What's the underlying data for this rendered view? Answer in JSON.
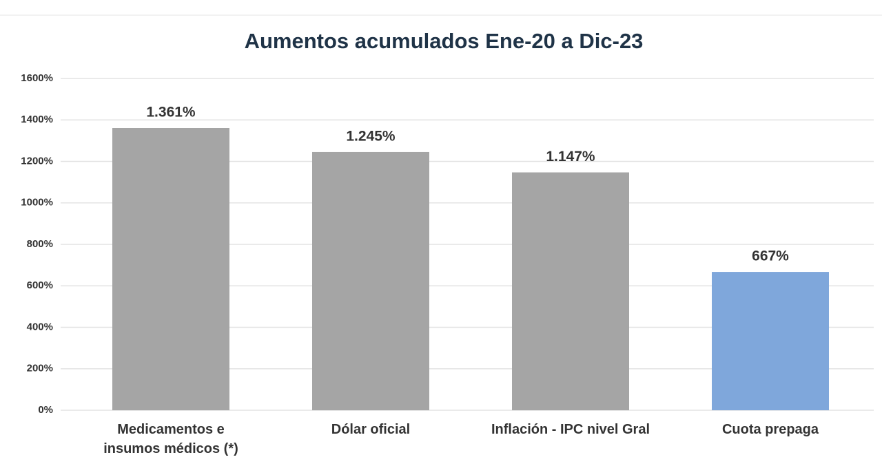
{
  "chart_data": {
    "type": "bar",
    "title": "Aumentos acumulados Ene-20 a Dic-23",
    "categories": [
      "Medicamentos e insumos médicos (*)",
      "Dólar oficial",
      "Inflación - IPC nivel Gral",
      "Cuota prepaga"
    ],
    "values": [
      1361,
      1245,
      1147,
      667
    ],
    "value_labels": [
      "1.361%",
      "1.245%",
      "1.147%",
      "667%"
    ],
    "colors": [
      "#a5a5a5",
      "#a5a5a5",
      "#a5a5a5",
      "#7fa7db"
    ],
    "ylim": [
      0,
      1600
    ],
    "yticks": [
      {
        "value": 0,
        "label": "0%"
      },
      {
        "value": 200,
        "label": "200%"
      },
      {
        "value": 400,
        "label": "400%"
      },
      {
        "value": 600,
        "label": "600%"
      },
      {
        "value": 800,
        "label": "800%"
      },
      {
        "value": 1000,
        "label": "1000%"
      },
      {
        "value": 1200,
        "label": "1200%"
      },
      {
        "value": 1400,
        "label": "1400%"
      },
      {
        "value": 1600,
        "label": "1600%"
      }
    ],
    "grid": true
  }
}
